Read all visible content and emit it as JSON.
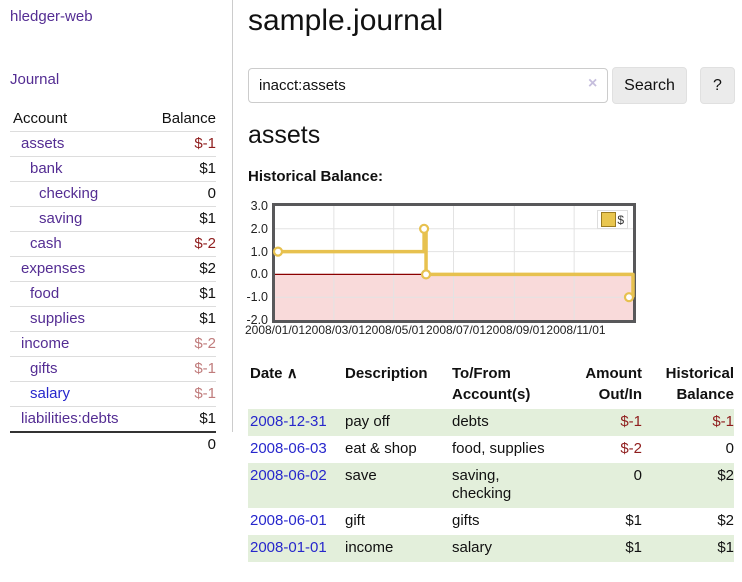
{
  "app": {
    "title": "hledger-web",
    "nav_journal": "Journal"
  },
  "sidebar": {
    "header": {
      "account": "Account",
      "balance": "Balance"
    },
    "accounts": [
      {
        "name": "assets",
        "balance": "$-1"
      },
      {
        "name": "bank",
        "balance": "$1"
      },
      {
        "name": "checking",
        "balance": "0"
      },
      {
        "name": "saving",
        "balance": "$1"
      },
      {
        "name": "cash",
        "balance": "$-2"
      },
      {
        "name": "expenses",
        "balance": "$2"
      },
      {
        "name": "food",
        "balance": "$1"
      },
      {
        "name": "supplies",
        "balance": "$1"
      },
      {
        "name": "income",
        "balance": "$-2"
      },
      {
        "name": "gifts",
        "balance": "$-1"
      },
      {
        "name": "salary",
        "balance": "$-1"
      },
      {
        "name": "liabilities:debts",
        "balance": "$1"
      }
    ],
    "total": "0"
  },
  "main": {
    "title": "sample.journal",
    "search": {
      "value": "inacct:assets",
      "clear_icon": "×",
      "button": "Search",
      "help_button": "?"
    },
    "heading": "assets",
    "chart_label": "Historical Balance:"
  },
  "chart_data": {
    "type": "line",
    "title": "Historical Balance",
    "step": true,
    "series": [
      {
        "name": "$",
        "points": [
          [
            "2008/01/01",
            1
          ],
          [
            "2008/06/01",
            2
          ],
          [
            "2008/06/03",
            0
          ],
          [
            "2008/12/31",
            -1
          ]
        ]
      }
    ],
    "x_range": [
      "2008/01/01",
      "2008/12/31"
    ],
    "ylim": [
      -2,
      3
    ],
    "y_ticks": [
      "3.0",
      "2.0",
      "1.0",
      "0.0",
      "-1.0",
      "-2.0"
    ],
    "x_ticks": [
      "2008/01/01",
      "2008/03/01",
      "2008/05/01",
      "2008/07/01",
      "2008/09/01",
      "2008/11/01"
    ],
    "legend": "$",
    "legend_position": "top-right",
    "grid": true,
    "line_color": "#e7c14f",
    "negative_fill": "#f9dada",
    "zero_line_color": "#8b0000"
  },
  "register": {
    "headers": {
      "date": "Date",
      "sort_icon": "∧",
      "description": "Description",
      "to_from": "To/From Account(s)",
      "amount": "Amount Out/In",
      "balance": "Historical Balance"
    },
    "rows": [
      {
        "date": "2008-12-31",
        "description": "pay off",
        "to_from": "debts",
        "amount": "$-1",
        "balance": "$-1"
      },
      {
        "date": "2008-06-03",
        "description": "eat & shop",
        "to_from": "food, supplies",
        "amount": "$-2",
        "balance": "0"
      },
      {
        "date": "2008-06-02",
        "description": "save",
        "to_from": "saving, checking",
        "amount": "0",
        "balance": "$2"
      },
      {
        "date": "2008-06-01",
        "description": "gift",
        "to_from": "gifts",
        "amount": "$1",
        "balance": "$2"
      },
      {
        "date": "2008-01-01",
        "description": "income",
        "to_from": "salary",
        "amount": "$1",
        "balance": "$1"
      }
    ]
  },
  "colors": {
    "accent_purple": "#542d93",
    "link_blue": "#2727cc",
    "negative_strong": "#8f1d1d",
    "negative_soft": "#c07c7c",
    "row_green": "#e3efdb",
    "chart_line_gold": "#e7c14f",
    "chart_negative_fill": "#f9dada",
    "zero_line_red": "#8b0000"
  }
}
